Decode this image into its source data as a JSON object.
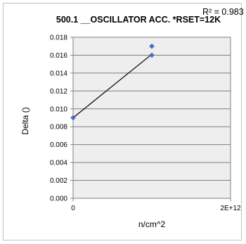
{
  "chart_data": {
    "type": "scatter",
    "title": "500.1 __OSCILLATOR ACC. *RSET=12K",
    "xlabel": "n/cm^2",
    "ylabel": "Delta ()",
    "xlim": [
      0,
      2000000000000
    ],
    "ylim": [
      0,
      0.018
    ],
    "x_tick_labels": [
      "0",
      "2E+12"
    ],
    "y_tick_labels": [
      "0.000",
      "0.002",
      "0.004",
      "0.006",
      "0.008",
      "0.010",
      "0.012",
      "0.014",
      "0.016",
      "0.018"
    ],
    "grid": true,
    "series": [
      {
        "points": [
          {
            "x": 0,
            "y": 0.009
          },
          {
            "x": 1000000000000,
            "y": 0.017
          },
          {
            "x": 1000000000000,
            "y": 0.016
          }
        ],
        "color": "#4472c4"
      }
    ],
    "trendline": {
      "points": [
        {
          "x": 0,
          "y": 0.009
        },
        {
          "x": 1000000000000,
          "y": 0.0161
        }
      ],
      "color": "#000000"
    },
    "annotation": "R² = 0.983"
  }
}
